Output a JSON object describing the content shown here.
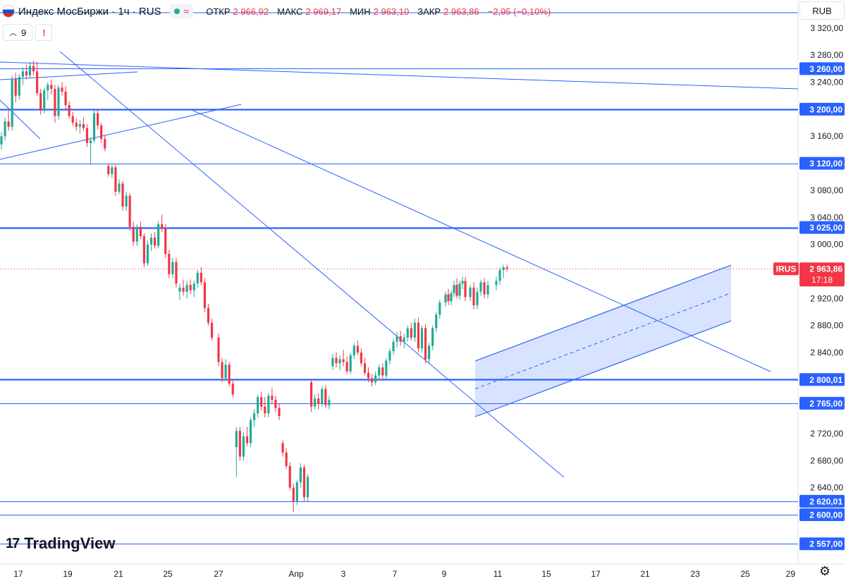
{
  "header": {
    "title": "Индекс МосБиржи · 1ч · RUS",
    "wave_icon": "≈",
    "ohlc": {
      "open_label": "ОТКР",
      "open_value": "2 966,92",
      "high_label": "МАКС",
      "high_value": "2 969,17",
      "low_label": "МИН",
      "low_value": "2 963,10",
      "close_label": "ЗАКР",
      "close_value": "2 963,86",
      "change": "−2,95 (−0,10%)"
    }
  },
  "indicators": {
    "count": "9",
    "warning": "!"
  },
  "currency": "RUB",
  "logo_text": "TradingView",
  "icons": {
    "settings": "gear-icon",
    "flag": "flag-icon",
    "status": "status-dot-icon",
    "logo": "tradingview-logo-icon"
  },
  "colors": {
    "up": "#22ab94",
    "down": "#f23645",
    "line": "#2962ff",
    "channel_fill": "rgba(41,98,255,0.18)",
    "last_price": "#f23645"
  },
  "chart_data": {
    "type": "candlestick",
    "symbol": "IRUS",
    "ylim": [
      2540,
      3340
    ],
    "y_ticks": [
      "3 320,00",
      "3 280,00",
      "3 240,00",
      "3 160,00",
      "3 080,00",
      "3 040,00",
      "3 000,00",
      "2 920,00",
      "2 880,00",
      "2 840,00",
      "2 720,00",
      "2 680,00",
      "2 640,00"
    ],
    "x_ticks": [
      "17",
      "19",
      "21",
      "25",
      "27",
      "Апр",
      "3",
      "7",
      "9",
      "11",
      "15",
      "17",
      "21",
      "23",
      "25",
      "29"
    ],
    "horizontal_levels": [
      {
        "price": 3260,
        "label": "3 260,00",
        "weight": "thin"
      },
      {
        "price": 3200,
        "label": "3 200,00",
        "weight": "thick"
      },
      {
        "price": 3120,
        "label": "3 120,00",
        "weight": "thin"
      },
      {
        "price": 3025,
        "label": "3 025,00",
        "weight": "thick"
      },
      {
        "price": 2800.01,
        "label": "2 800,01",
        "weight": "thick"
      },
      {
        "price": 2765,
        "label": "2 765,00",
        "weight": "thin"
      },
      {
        "price": 2620.01,
        "label": "2 620,01",
        "weight": "thin"
      },
      {
        "price": 2600,
        "label": "2 600,00",
        "weight": "thin"
      },
      {
        "price": 2557,
        "label": "2 557,00",
        "weight": "thin"
      }
    ],
    "last_price": {
      "symbol": "IRUS",
      "value": "2 963,86",
      "timer": "17:18",
      "price": 2963.86
    },
    "candles": [
      {
        "o": 3148,
        "h": 3166,
        "l": 3140,
        "c": 3160
      },
      {
        "o": 3160,
        "h": 3188,
        "l": 3154,
        "c": 3182
      },
      {
        "o": 3182,
        "h": 3198,
        "l": 3168,
        "c": 3174
      },
      {
        "o": 3174,
        "h": 3250,
        "l": 3168,
        "c": 3245
      },
      {
        "o": 3245,
        "h": 3254,
        "l": 3210,
        "c": 3220
      },
      {
        "o": 3220,
        "h": 3252,
        "l": 3214,
        "c": 3248
      },
      {
        "o": 3248,
        "h": 3262,
        "l": 3236,
        "c": 3256
      },
      {
        "o": 3256,
        "h": 3266,
        "l": 3244,
        "c": 3250
      },
      {
        "o": 3250,
        "h": 3270,
        "l": 3246,
        "c": 3264
      },
      {
        "o": 3264,
        "h": 3272,
        "l": 3250,
        "c": 3256
      },
      {
        "o": 3256,
        "h": 3270,
        "l": 3220,
        "c": 3224
      },
      {
        "o": 3224,
        "h": 3230,
        "l": 3192,
        "c": 3198
      },
      {
        "o": 3198,
        "h": 3232,
        "l": 3194,
        "c": 3228
      },
      {
        "o": 3228,
        "h": 3240,
        "l": 3214,
        "c": 3236
      },
      {
        "o": 3236,
        "h": 3244,
        "l": 3222,
        "c": 3230
      },
      {
        "o": 3230,
        "h": 3236,
        "l": 3180,
        "c": 3190
      },
      {
        "o": 3190,
        "h": 3236,
        "l": 3184,
        "c": 3232
      },
      {
        "o": 3232,
        "h": 3240,
        "l": 3220,
        "c": 3226
      },
      {
        "o": 3226,
        "h": 3234,
        "l": 3200,
        "c": 3206
      },
      {
        "o": 3206,
        "h": 3212,
        "l": 3186,
        "c": 3190
      },
      {
        "o": 3190,
        "h": 3196,
        "l": 3176,
        "c": 3180
      },
      {
        "o": 3180,
        "h": 3186,
        "l": 3168,
        "c": 3174
      },
      {
        "o": 3174,
        "h": 3184,
        "l": 3164,
        "c": 3178
      },
      {
        "o": 3178,
        "h": 3188,
        "l": 3168,
        "c": 3172
      },
      {
        "o": 3172,
        "h": 3178,
        "l": 3144,
        "c": 3150
      },
      {
        "o": 3150,
        "h": 3158,
        "l": 3118,
        "c": 3154
      },
      {
        "o": 3154,
        "h": 3198,
        "l": 3150,
        "c": 3194
      },
      {
        "o": 3194,
        "h": 3200,
        "l": 3170,
        "c": 3176
      },
      {
        "o": 3176,
        "h": 3180,
        "l": 3150,
        "c": 3156
      },
      {
        "o": 3156,
        "h": 3162,
        "l": 3138,
        "c": 3142
      },
      {
        "o": 3116,
        "h": 3120,
        "l": 3100,
        "c": 3104
      },
      {
        "o": 3104,
        "h": 3118,
        "l": 3098,
        "c": 3114
      },
      {
        "o": 3114,
        "h": 3118,
        "l": 3072,
        "c": 3078
      },
      {
        "o": 3078,
        "h": 3096,
        "l": 3074,
        "c": 3090
      },
      {
        "o": 3090,
        "h": 3094,
        "l": 3050,
        "c": 3056
      },
      {
        "o": 3056,
        "h": 3078,
        "l": 3050,
        "c": 3072
      },
      {
        "o": 3072,
        "h": 3076,
        "l": 3020,
        "c": 3026
      },
      {
        "o": 3026,
        "h": 3034,
        "l": 2998,
        "c": 3004
      },
      {
        "o": 3004,
        "h": 3030,
        "l": 2998,
        "c": 3026
      },
      {
        "o": 3026,
        "h": 3034,
        "l": 3008,
        "c": 3012
      },
      {
        "o": 3012,
        "h": 3016,
        "l": 2966,
        "c": 2972
      },
      {
        "o": 2972,
        "h": 3006,
        "l": 2968,
        "c": 3000
      },
      {
        "o": 3000,
        "h": 3016,
        "l": 2990,
        "c": 3010
      },
      {
        "o": 3010,
        "h": 3018,
        "l": 2994,
        "c": 2998
      },
      {
        "o": 2998,
        "h": 3034,
        "l": 2994,
        "c": 3030
      },
      {
        "o": 3030,
        "h": 3044,
        "l": 3018,
        "c": 3024
      },
      {
        "o": 3024,
        "h": 3030,
        "l": 2980,
        "c": 2986
      },
      {
        "o": 2986,
        "h": 2992,
        "l": 2950,
        "c": 2956
      },
      {
        "o": 2956,
        "h": 2980,
        "l": 2950,
        "c": 2974
      },
      {
        "o": 2974,
        "h": 2980,
        "l": 2936,
        "c": 2942
      },
      {
        "o": 2930,
        "h": 2942,
        "l": 2918,
        "c": 2936
      },
      {
        "o": 2936,
        "h": 2948,
        "l": 2924,
        "c": 2930
      },
      {
        "o": 2930,
        "h": 2946,
        "l": 2920,
        "c": 2940
      },
      {
        "o": 2940,
        "h": 2948,
        "l": 2926,
        "c": 2932
      },
      {
        "o": 2932,
        "h": 2946,
        "l": 2922,
        "c": 2942
      },
      {
        "o": 2942,
        "h": 2962,
        "l": 2936,
        "c": 2958
      },
      {
        "o": 2958,
        "h": 2966,
        "l": 2940,
        "c": 2944
      },
      {
        "o": 2944,
        "h": 2950,
        "l": 2900,
        "c": 2906
      },
      {
        "o": 2906,
        "h": 2912,
        "l": 2880,
        "c": 2884
      },
      {
        "o": 2884,
        "h": 2890,
        "l": 2858,
        "c": 2862
      },
      {
        "o": 2862,
        "h": 2868,
        "l": 2820,
        "c": 2826
      },
      {
        "o": 2826,
        "h": 2832,
        "l": 2796,
        "c": 2802
      },
      {
        "o": 2802,
        "h": 2830,
        "l": 2798,
        "c": 2822
      },
      {
        "o": 2822,
        "h": 2826,
        "l": 2790,
        "c": 2794
      },
      {
        "o": 2794,
        "h": 2800,
        "l": 2774,
        "c": 2778
      },
      {
        "o": 2700,
        "h": 2730,
        "l": 2656,
        "c": 2724
      },
      {
        "o": 2724,
        "h": 2730,
        "l": 2680,
        "c": 2686
      },
      {
        "o": 2686,
        "h": 2722,
        "l": 2680,
        "c": 2716
      },
      {
        "o": 2716,
        "h": 2730,
        "l": 2702,
        "c": 2706
      },
      {
        "o": 2706,
        "h": 2744,
        "l": 2700,
        "c": 2740
      },
      {
        "o": 2740,
        "h": 2756,
        "l": 2730,
        "c": 2750
      },
      {
        "o": 2750,
        "h": 2778,
        "l": 2744,
        "c": 2774
      },
      {
        "o": 2774,
        "h": 2782,
        "l": 2754,
        "c": 2760
      },
      {
        "o": 2760,
        "h": 2774,
        "l": 2744,
        "c": 2750
      },
      {
        "o": 2750,
        "h": 2780,
        "l": 2744,
        "c": 2776
      },
      {
        "o": 2776,
        "h": 2788,
        "l": 2764,
        "c": 2770
      },
      {
        "o": 2770,
        "h": 2776,
        "l": 2752,
        "c": 2758
      },
      {
        "o": 2758,
        "h": 2764,
        "l": 2740,
        "c": 2746
      },
      {
        "o": 2706,
        "h": 2710,
        "l": 2686,
        "c": 2692
      },
      {
        "o": 2692,
        "h": 2698,
        "l": 2668,
        "c": 2672
      },
      {
        "o": 2672,
        "h": 2678,
        "l": 2636,
        "c": 2640
      },
      {
        "o": 2640,
        "h": 2646,
        "l": 2604,
        "c": 2620
      },
      {
        "o": 2620,
        "h": 2652,
        "l": 2614,
        "c": 2648
      },
      {
        "o": 2648,
        "h": 2676,
        "l": 2640,
        "c": 2670
      },
      {
        "o": 2670,
        "h": 2674,
        "l": 2620,
        "c": 2626
      },
      {
        "o": 2626,
        "h": 2660,
        "l": 2620,
        "c": 2656
      },
      {
        "o": 2796,
        "h": 2800,
        "l": 2752,
        "c": 2760
      },
      {
        "o": 2760,
        "h": 2778,
        "l": 2756,
        "c": 2772
      },
      {
        "o": 2772,
        "h": 2780,
        "l": 2756,
        "c": 2764
      },
      {
        "o": 2764,
        "h": 2790,
        "l": 2760,
        "c": 2786
      },
      {
        "o": 2786,
        "h": 2792,
        "l": 2758,
        "c": 2762
      },
      {
        "o": 2762,
        "h": 2776,
        "l": 2756,
        "c": 2770
      },
      {
        "o": 2820,
        "h": 2838,
        "l": 2814,
        "c": 2832
      },
      {
        "o": 2832,
        "h": 2840,
        "l": 2818,
        "c": 2824
      },
      {
        "o": 2824,
        "h": 2836,
        "l": 2814,
        "c": 2830
      },
      {
        "o": 2830,
        "h": 2844,
        "l": 2820,
        "c": 2826
      },
      {
        "o": 2826,
        "h": 2834,
        "l": 2808,
        "c": 2812
      },
      {
        "o": 2812,
        "h": 2840,
        "l": 2808,
        "c": 2836
      },
      {
        "o": 2836,
        "h": 2854,
        "l": 2830,
        "c": 2850
      },
      {
        "o": 2850,
        "h": 2858,
        "l": 2836,
        "c": 2840
      },
      {
        "o": 2840,
        "h": 2846,
        "l": 2820,
        "c": 2824
      },
      {
        "o": 2824,
        "h": 2832,
        "l": 2806,
        "c": 2810
      },
      {
        "o": 2810,
        "h": 2818,
        "l": 2796,
        "c": 2802
      },
      {
        "o": 2802,
        "h": 2808,
        "l": 2790,
        "c": 2796
      },
      {
        "o": 2796,
        "h": 2812,
        "l": 2792,
        "c": 2806
      },
      {
        "o": 2806,
        "h": 2822,
        "l": 2800,
        "c": 2818
      },
      {
        "o": 2818,
        "h": 2824,
        "l": 2800,
        "c": 2806
      },
      {
        "o": 2806,
        "h": 2832,
        "l": 2800,
        "c": 2828
      },
      {
        "o": 2828,
        "h": 2846,
        "l": 2822,
        "c": 2842
      },
      {
        "o": 2842,
        "h": 2860,
        "l": 2836,
        "c": 2856
      },
      {
        "o": 2856,
        "h": 2870,
        "l": 2848,
        "c": 2864
      },
      {
        "o": 2864,
        "h": 2872,
        "l": 2850,
        "c": 2856
      },
      {
        "o": 2856,
        "h": 2868,
        "l": 2846,
        "c": 2862
      },
      {
        "o": 2862,
        "h": 2880,
        "l": 2856,
        "c": 2876
      },
      {
        "o": 2876,
        "h": 2884,
        "l": 2858,
        "c": 2862
      },
      {
        "o": 2862,
        "h": 2890,
        "l": 2856,
        "c": 2884
      },
      {
        "o": 2884,
        "h": 2892,
        "l": 2840,
        "c": 2846
      },
      {
        "o": 2846,
        "h": 2880,
        "l": 2840,
        "c": 2876
      },
      {
        "o": 2876,
        "h": 2882,
        "l": 2824,
        "c": 2830
      },
      {
        "o": 2830,
        "h": 2854,
        "l": 2824,
        "c": 2850
      },
      {
        "o": 2850,
        "h": 2880,
        "l": 2844,
        "c": 2876
      },
      {
        "o": 2876,
        "h": 2900,
        "l": 2870,
        "c": 2896
      },
      {
        "o": 2896,
        "h": 2918,
        "l": 2890,
        "c": 2914
      },
      {
        "o": 2914,
        "h": 2930,
        "l": 2908,
        "c": 2926
      },
      {
        "o": 2926,
        "h": 2934,
        "l": 2910,
        "c": 2916
      },
      {
        "o": 2916,
        "h": 2932,
        "l": 2910,
        "c": 2928
      },
      {
        "o": 2928,
        "h": 2946,
        "l": 2922,
        "c": 2940
      },
      {
        "o": 2940,
        "h": 2950,
        "l": 2920,
        "c": 2924
      },
      {
        "o": 2924,
        "h": 2946,
        "l": 2918,
        "c": 2942
      },
      {
        "o": 2942,
        "h": 2952,
        "l": 2934,
        "c": 2946
      },
      {
        "o": 2946,
        "h": 2952,
        "l": 2916,
        "c": 2922
      },
      {
        "o": 2922,
        "h": 2940,
        "l": 2916,
        "c": 2936
      },
      {
        "o": 2936,
        "h": 2944,
        "l": 2904,
        "c": 2910
      },
      {
        "o": 2910,
        "h": 2936,
        "l": 2904,
        "c": 2930
      },
      {
        "o": 2930,
        "h": 2948,
        "l": 2924,
        "c": 2944
      },
      {
        "o": 2944,
        "h": 2950,
        "l": 2920,
        "c": 2926
      },
      {
        "o": 2926,
        "h": 2946,
        "l": 2920,
        "c": 2940
      },
      {
        "o": 2940,
        "h": 2952,
        "l": 2932,
        "c": 2946
      },
      {
        "o": 2946,
        "h": 2966,
        "l": 2940,
        "c": 2962
      },
      {
        "o": 2962,
        "h": 2970,
        "l": 2950,
        "c": 2966
      },
      {
        "o": 2966,
        "h": 2970,
        "l": 2960,
        "c": 2964
      }
    ]
  }
}
